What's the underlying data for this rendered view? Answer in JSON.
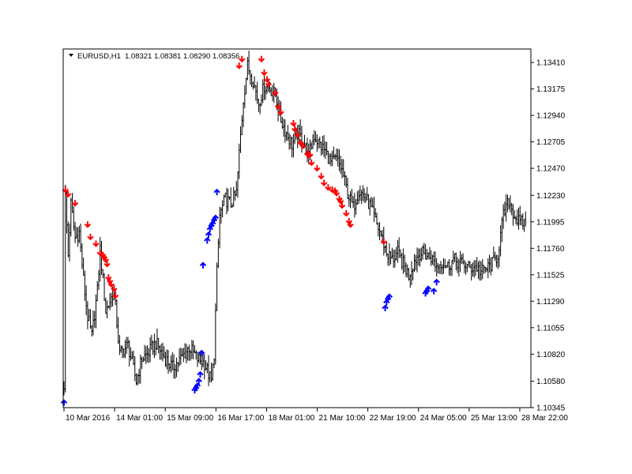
{
  "chart_data": {
    "type": "ohlc",
    "symbol_label": "EURUSD,H1",
    "ohlc_label": "1.08321 1.08381 1.08290 1.08356",
    "ylim": [
      1.10345,
      1.1353
    ],
    "y_ticks": [
      "1.13410",
      "1.13175",
      "1.12940",
      "1.12705",
      "1.12470",
      "1.12230",
      "1.11995",
      "1.11760",
      "1.11525",
      "1.11290",
      "1.11055",
      "1.10820",
      "1.10580",
      "1.10345"
    ],
    "x_ticks": [
      "10 Mar 2016",
      "14 Mar 01:00",
      "15 Mar 09:00",
      "16 Mar 17:00",
      "18 Mar 01:00",
      "21 Mar 10:00",
      "22 Mar 19:00",
      "24 Mar 05:00",
      "25 Mar 13:00",
      "28 Mar 22:00"
    ],
    "price_anchors": [
      [
        0,
        1.1055
      ],
      [
        1,
        1.1222
      ],
      [
        3,
        1.117
      ],
      [
        5,
        1.1215
      ],
      [
        8,
        1.1185
      ],
      [
        11,
        1.119
      ],
      [
        14,
        1.1148
      ],
      [
        17,
        1.1115
      ],
      [
        20,
        1.1098
      ],
      [
        24,
        1.1138
      ],
      [
        26,
        1.1175
      ],
      [
        30,
        1.112
      ],
      [
        36,
        1.1138
      ],
      [
        40,
        1.1082
      ],
      [
        46,
        1.109
      ],
      [
        52,
        1.1058
      ],
      [
        56,
        1.1078
      ],
      [
        60,
        1.1082
      ],
      [
        66,
        1.1092
      ],
      [
        72,
        1.108
      ],
      [
        78,
        1.107
      ],
      [
        84,
        1.1078
      ],
      [
        90,
        1.1088
      ],
      [
        96,
        1.1078
      ],
      [
        101,
        1.1074
      ],
      [
        106,
        1.1058
      ],
      [
        108,
        1.1082
      ],
      [
        110,
        1.1155
      ],
      [
        112,
        1.1205
      ],
      [
        116,
        1.122
      ],
      [
        120,
        1.1215
      ],
      [
        124,
        1.1225
      ],
      [
        126,
        1.126
      ],
      [
        129,
        1.1308
      ],
      [
        132,
        1.1338
      ],
      [
        136,
        1.1325
      ],
      [
        140,
        1.1305
      ],
      [
        144,
        1.132
      ],
      [
        148,
        1.1318
      ],
      [
        152,
        1.1312
      ],
      [
        156,
        1.129
      ],
      [
        160,
        1.1278
      ],
      [
        164,
        1.1268
      ],
      [
        168,
        1.1278
      ],
      [
        172,
        1.1272
      ],
      [
        176,
        1.1258
      ],
      [
        180,
        1.1276
      ],
      [
        184,
        1.1268
      ],
      [
        188,
        1.1262
      ],
      [
        192,
        1.1252
      ],
      [
        196,
        1.1255
      ],
      [
        200,
        1.1245
      ],
      [
        204,
        1.1225
      ],
      [
        208,
        1.1212
      ],
      [
        212,
        1.1228
      ],
      [
        216,
        1.1222
      ],
      [
        220,
        1.1214
      ],
      [
        224,
        1.12
      ],
      [
        228,
        1.1188
      ],
      [
        232,
        1.1172
      ],
      [
        236,
        1.1166
      ],
      [
        240,
        1.1172
      ],
      [
        244,
        1.1162
      ],
      [
        248,
        1.1152
      ],
      [
        252,
        1.1165
      ],
      [
        256,
        1.1172
      ],
      [
        260,
        1.117
      ],
      [
        264,
        1.1168
      ],
      [
        268,
        1.116
      ],
      [
        272,
        1.1164
      ],
      [
        276,
        1.116
      ],
      [
        280,
        1.1166
      ],
      [
        284,
        1.1163
      ],
      [
        288,
        1.1162
      ],
      [
        292,
        1.1158
      ],
      [
        296,
        1.116
      ],
      [
        300,
        1.1155
      ],
      [
        304,
        1.1158
      ],
      [
        308,
        1.1162
      ],
      [
        312,
        1.117
      ],
      [
        316,
        1.1205
      ],
      [
        320,
        1.1218
      ],
      [
        324,
        1.1205
      ],
      [
        328,
        1.1198
      ],
      [
        332,
        1.12
      ]
    ],
    "sell_signals": [
      [
        1,
        1.1226
      ],
      [
        3,
        1.1222
      ],
      [
        8,
        1.1214
      ],
      [
        17,
        1.1195
      ],
      [
        19,
        1.1184
      ],
      [
        23,
        1.1178
      ],
      [
        26,
        1.117
      ],
      [
        28,
        1.1168
      ],
      [
        29,
        1.1166
      ],
      [
        30,
        1.1164
      ],
      [
        31,
        1.116
      ],
      [
        32,
        1.1148
      ],
      [
        33,
        1.1145
      ],
      [
        34,
        1.1142
      ],
      [
        36,
        1.1138
      ],
      [
        37,
        1.1132
      ],
      [
        126,
        1.1336
      ],
      [
        128,
        1.1342
      ],
      [
        142,
        1.1342
      ],
      [
        144,
        1.133
      ],
      [
        146,
        1.1324
      ],
      [
        147,
        1.132
      ],
      [
        152,
        1.1312
      ],
      [
        154,
        1.13
      ],
      [
        156,
        1.1295
      ],
      [
        165,
        1.1285
      ],
      [
        166,
        1.128
      ],
      [
        168,
        1.1275
      ],
      [
        170,
        1.1268
      ],
      [
        172,
        1.1265
      ],
      [
        175,
        1.1258
      ],
      [
        176,
        1.1257
      ],
      [
        177,
        1.1257
      ],
      [
        178,
        1.125
      ],
      [
        182,
        1.1245
      ],
      [
        185,
        1.1238
      ],
      [
        187,
        1.1232
      ],
      [
        190,
        1.1228
      ],
      [
        193,
        1.1226
      ],
      [
        195,
        1.1225
      ],
      [
        196,
        1.1223
      ],
      [
        198,
        1.1218
      ],
      [
        199,
        1.1216
      ],
      [
        200,
        1.1212
      ],
      [
        203,
        1.1205
      ],
      [
        205,
        1.1198
      ],
      [
        206,
        1.1195
      ],
      [
        230,
        1.118
      ]
    ],
    "buy_signals": [
      [
        0,
        1.1041
      ],
      [
        94,
        1.1052
      ],
      [
        95,
        1.1054
      ],
      [
        96,
        1.1056
      ],
      [
        97,
        1.106
      ],
      [
        98,
        1.1066
      ],
      [
        99,
        1.1085
      ],
      [
        100,
        1.1163
      ],
      [
        103,
        1.1185
      ],
      [
        104,
        1.119
      ],
      [
        105,
        1.1195
      ],
      [
        106,
        1.1198
      ],
      [
        107,
        1.12
      ],
      [
        108,
        1.1203
      ],
      [
        109,
        1.1205
      ],
      [
        110,
        1.1228
      ],
      [
        231,
        1.1125
      ],
      [
        232,
        1.113
      ],
      [
        233,
        1.1133
      ],
      [
        234,
        1.1135
      ],
      [
        260,
        1.1138
      ],
      [
        261,
        1.114
      ],
      [
        262,
        1.1142
      ],
      [
        266,
        1.114
      ],
      [
        268,
        1.1148
      ]
    ]
  }
}
